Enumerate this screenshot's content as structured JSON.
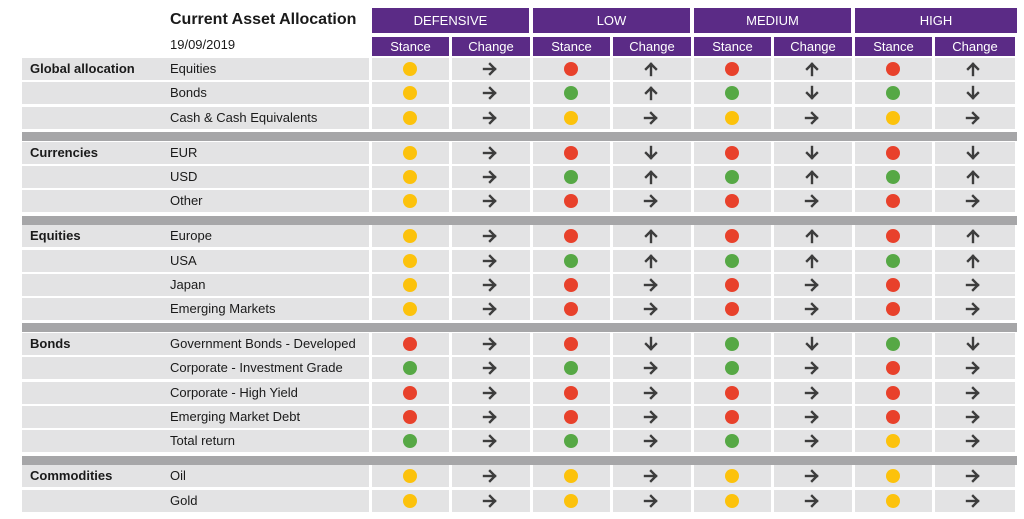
{
  "title": "Current Asset Allocation",
  "date": "19/09/2019",
  "colors": {
    "header": "#5b2b86",
    "red": "#e8412b",
    "green": "#56a845",
    "yellow": "#fcc20c",
    "arrow": "#3d3d3d"
  },
  "groups": [
    "DEFENSIVE",
    "LOW",
    "MEDIUM",
    "HIGH"
  ],
  "subheaders": [
    "Stance",
    "Change"
  ],
  "sections": [
    {
      "name": "Global allocation",
      "rows": [
        {
          "label": "Equities",
          "cells": [
            [
              "yellow",
              "right"
            ],
            [
              "red",
              "up"
            ],
            [
              "red",
              "up"
            ],
            [
              "red",
              "up"
            ]
          ]
        },
        {
          "label": "Bonds",
          "cells": [
            [
              "yellow",
              "right"
            ],
            [
              "green",
              "up"
            ],
            [
              "green",
              "down"
            ],
            [
              "green",
              "down"
            ]
          ]
        },
        {
          "label": "Cash & Cash Equivalents",
          "cells": [
            [
              "yellow",
              "right"
            ],
            [
              "yellow",
              "right"
            ],
            [
              "yellow",
              "right"
            ],
            [
              "yellow",
              "right"
            ]
          ]
        }
      ]
    },
    {
      "name": "Currencies",
      "rows": [
        {
          "label": "EUR",
          "cells": [
            [
              "yellow",
              "right"
            ],
            [
              "red",
              "down"
            ],
            [
              "red",
              "down"
            ],
            [
              "red",
              "down"
            ]
          ]
        },
        {
          "label": "USD",
          "cells": [
            [
              "yellow",
              "right"
            ],
            [
              "green",
              "up"
            ],
            [
              "green",
              "up"
            ],
            [
              "green",
              "up"
            ]
          ]
        },
        {
          "label": "Other",
          "cells": [
            [
              "yellow",
              "right"
            ],
            [
              "red",
              "right"
            ],
            [
              "red",
              "right"
            ],
            [
              "red",
              "right"
            ]
          ]
        }
      ]
    },
    {
      "name": "Equities",
      "rows": [
        {
          "label": "Europe",
          "cells": [
            [
              "yellow",
              "right"
            ],
            [
              "red",
              "up"
            ],
            [
              "red",
              "up"
            ],
            [
              "red",
              "up"
            ]
          ]
        },
        {
          "label": "USA",
          "cells": [
            [
              "yellow",
              "right"
            ],
            [
              "green",
              "up"
            ],
            [
              "green",
              "up"
            ],
            [
              "green",
              "up"
            ]
          ]
        },
        {
          "label": "Japan",
          "cells": [
            [
              "yellow",
              "right"
            ],
            [
              "red",
              "right"
            ],
            [
              "red",
              "right"
            ],
            [
              "red",
              "right"
            ]
          ]
        },
        {
          "label": "Emerging Markets",
          "cells": [
            [
              "yellow",
              "right"
            ],
            [
              "red",
              "right"
            ],
            [
              "red",
              "right"
            ],
            [
              "red",
              "right"
            ]
          ]
        }
      ]
    },
    {
      "name": "Bonds",
      "rows": [
        {
          "label": "Government Bonds - Developed",
          "cells": [
            [
              "red",
              "right"
            ],
            [
              "red",
              "down"
            ],
            [
              "green",
              "down"
            ],
            [
              "green",
              "down"
            ]
          ]
        },
        {
          "label": "Corporate - Investment Grade",
          "cells": [
            [
              "green",
              "right"
            ],
            [
              "green",
              "right"
            ],
            [
              "green",
              "right"
            ],
            [
              "red",
              "right"
            ]
          ]
        },
        {
          "label": "Corporate - High Yield",
          "cells": [
            [
              "red",
              "right"
            ],
            [
              "red",
              "right"
            ],
            [
              "red",
              "right"
            ],
            [
              "red",
              "right"
            ]
          ]
        },
        {
          "label": "Emerging Market Debt",
          "cells": [
            [
              "red",
              "right"
            ],
            [
              "red",
              "right"
            ],
            [
              "red",
              "right"
            ],
            [
              "red",
              "right"
            ]
          ]
        },
        {
          "label": "Total return",
          "cells": [
            [
              "green",
              "right"
            ],
            [
              "green",
              "right"
            ],
            [
              "green",
              "right"
            ],
            [
              "yellow",
              "right"
            ]
          ]
        }
      ]
    },
    {
      "name": "Commodities",
      "rows": [
        {
          "label": "Oil",
          "cells": [
            [
              "yellow",
              "right"
            ],
            [
              "yellow",
              "right"
            ],
            [
              "yellow",
              "right"
            ],
            [
              "yellow",
              "right"
            ]
          ]
        },
        {
          "label": "Gold",
          "cells": [
            [
              "yellow",
              "right"
            ],
            [
              "yellow",
              "right"
            ],
            [
              "yellow",
              "right"
            ],
            [
              "yellow",
              "right"
            ]
          ]
        }
      ]
    }
  ]
}
